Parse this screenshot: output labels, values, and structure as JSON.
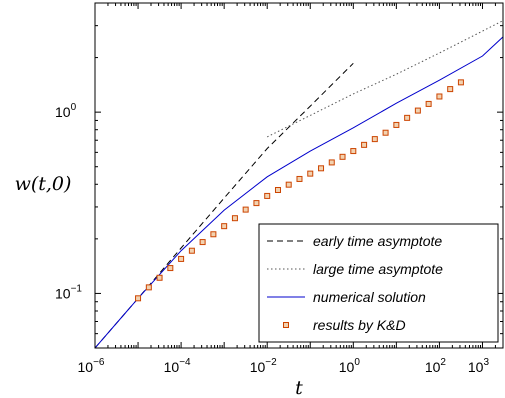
{
  "chart_data": {
    "type": "line",
    "xlabel": "t",
    "ylabel": "w(t,0)",
    "xscale": "log",
    "yscale": "log",
    "xlim": [
      1e-06,
      3000
    ],
    "ylim": [
      0.05,
      4.0
    ],
    "grid": false,
    "legend_position": "bottom-right",
    "x_ticks": [
      {
        "base": "10",
        "exp": "−6",
        "value": 1e-06
      },
      {
        "base": "10",
        "exp": "−4",
        "value": 0.0001
      },
      {
        "base": "10",
        "exp": "−2",
        "value": 0.01
      },
      {
        "base": "10",
        "exp": "0",
        "value": 1
      },
      {
        "base": "10",
        "exp": "2",
        "value": 100
      },
      {
        "base": "10",
        "exp": "3",
        "value": 1000
      }
    ],
    "y_ticks": [
      {
        "base": "10",
        "exp": "−1",
        "value": 0.1
      },
      {
        "base": "10",
        "exp": "0",
        "value": 1
      }
    ],
    "series": [
      {
        "name": "early time asymptote",
        "style": "dashed",
        "color": "#000000",
        "x": [
          1e-06,
          1e-05,
          0.0001,
          0.001,
          0.01,
          0.1,
          1
        ],
        "y": [
          0.05,
          0.094,
          0.178,
          0.336,
          0.63,
          1.08,
          1.86
        ]
      },
      {
        "name": "large time asymptote",
        "style": "dotted",
        "color": "#555555",
        "x": [
          0.01,
          0.1,
          1,
          10,
          100,
          1000,
          3000
        ],
        "y": [
          0.73,
          0.96,
          1.26,
          1.62,
          2.12,
          2.8,
          3.2
        ]
      },
      {
        "name": "numerical solution",
        "style": "solid",
        "color": "#0000cc",
        "x": [
          1e-06,
          1e-05,
          0.0001,
          0.001,
          0.01,
          0.1,
          1,
          10,
          100,
          1000,
          3000
        ],
        "y": [
          0.05,
          0.094,
          0.172,
          0.288,
          0.44,
          0.61,
          0.82,
          1.12,
          1.5,
          2.04,
          2.6
        ]
      },
      {
        "name": "results by K&D",
        "style": "markers",
        "color": "#cc4400",
        "x": [
          1e-05,
          1.78e-05,
          3.16e-05,
          5.62e-05,
          0.0001,
          0.000178,
          0.000316,
          0.000562,
          0.001,
          0.00178,
          0.00316,
          0.00562,
          0.01,
          0.0178,
          0.0316,
          0.0562,
          0.1,
          0.178,
          0.316,
          0.562,
          1,
          1.78,
          3.16,
          5.62,
          10,
          17.8,
          31.6,
          56.2,
          100,
          178,
          316
        ],
        "y": [
          0.094,
          0.108,
          0.122,
          0.138,
          0.155,
          0.172,
          0.192,
          0.212,
          0.235,
          0.26,
          0.29,
          0.315,
          0.345,
          0.372,
          0.398,
          0.428,
          0.458,
          0.49,
          0.528,
          0.567,
          0.61,
          0.66,
          0.71,
          0.77,
          0.85,
          0.93,
          1.02,
          1.11,
          1.22,
          1.34,
          1.46
        ]
      }
    ]
  }
}
